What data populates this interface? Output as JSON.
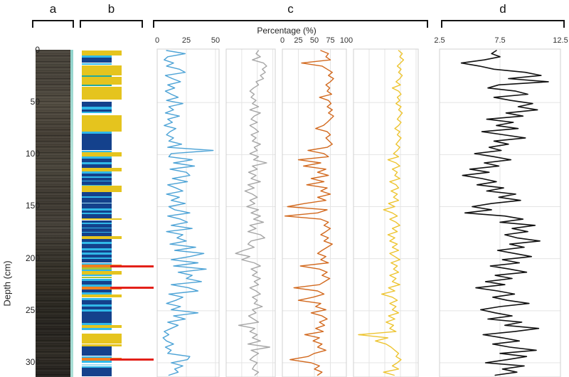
{
  "figure": {
    "panel_labels": {
      "a": "a",
      "b": "b",
      "c": "c",
      "d": "d"
    },
    "percentage_axis_label": "Percentage (%)",
    "depth_axis_label": "Depth (cm)",
    "depth_ticks": [
      0,
      50,
      100,
      150,
      200,
      250,
      300
    ],
    "core_photo": {
      "name": "sediment-core-photograph",
      "edge_strip_color": "#9cd8d0"
    },
    "lithology": {
      "colors": {
        "navy": "#14418c",
        "cyan": "#30b8e8",
        "lightcyan": "#9fdcf2",
        "teal": "#22a99c",
        "lime": "#a9c438",
        "yellow": "#e5c41e",
        "orange": "#f07f1e",
        "red": "#e32119",
        "white": "#ffffff"
      },
      "bands": [
        [
          0,
          5,
          "yellow"
        ],
        [
          5,
          7,
          "cyan"
        ],
        [
          7,
          12,
          "navy"
        ],
        [
          12,
          14,
          "cyan"
        ],
        [
          14,
          24,
          "yellow"
        ],
        [
          24,
          25.5,
          "teal"
        ],
        [
          25.5,
          33,
          "yellow"
        ],
        [
          33,
          34.5,
          "teal"
        ],
        [
          34.5,
          47,
          "yellow"
        ],
        [
          47,
          49,
          "white"
        ],
        [
          49,
          54,
          "navy"
        ],
        [
          54,
          56.5,
          "cyan"
        ],
        [
          56.5,
          58.5,
          "navy"
        ],
        [
          58.5,
          60,
          "cyan"
        ],
        [
          60,
          62,
          "white"
        ],
        [
          62,
          78,
          "yellow"
        ],
        [
          78,
          80,
          "cyan"
        ],
        [
          80,
          96,
          "navy"
        ],
        [
          96,
          97.5,
          "cyan"
        ],
        [
          97.5,
          102,
          "yellow"
        ],
        [
          102,
          104,
          "cyan"
        ],
        [
          104,
          107.5,
          "navy"
        ],
        [
          107.5,
          109.5,
          "cyan"
        ],
        [
          109.5,
          113,
          "navy"
        ],
        [
          113,
          116,
          "yellow"
        ],
        [
          116,
          118,
          "cyan"
        ],
        [
          118,
          121,
          "navy"
        ],
        [
          121,
          122,
          "cyan"
        ],
        [
          122,
          125,
          "navy"
        ],
        [
          125,
          126,
          "cyan"
        ],
        [
          126,
          129,
          "navy"
        ],
        [
          129,
          130,
          "cyan"
        ],
        [
          130,
          136,
          "yellow"
        ],
        [
          136,
          140,
          "navy"
        ],
        [
          140,
          141.5,
          "cyan"
        ],
        [
          141.5,
          146,
          "navy"
        ],
        [
          146,
          147,
          "lightcyan"
        ],
        [
          147,
          152,
          "navy"
        ],
        [
          152,
          154,
          "cyan"
        ],
        [
          154,
          156,
          "navy"
        ],
        [
          156,
          157,
          "cyan"
        ],
        [
          157,
          161,
          "navy"
        ],
        [
          161,
          163,
          "yellow"
        ],
        [
          163,
          165.5,
          "navy"
        ],
        [
          165.5,
          167,
          "cyan"
        ],
        [
          167,
          170,
          "navy"
        ],
        [
          170,
          171,
          "cyan"
        ],
        [
          171,
          174,
          "navy"
        ],
        [
          174,
          175,
          "cyan"
        ],
        [
          175,
          178.5,
          "navy"
        ],
        [
          178.5,
          181,
          "yellow"
        ],
        [
          181,
          184,
          "navy"
        ],
        [
          184,
          186,
          "cyan"
        ],
        [
          186,
          190,
          "navy"
        ],
        [
          190,
          192,
          "cyan"
        ],
        [
          192,
          194,
          "navy"
        ],
        [
          194,
          196,
          "cyan"
        ],
        [
          196,
          199,
          "navy"
        ],
        [
          199,
          200.5,
          "cyan"
        ],
        [
          200.5,
          204,
          "navy"
        ],
        [
          204,
          206,
          "cyan"
        ],
        [
          206,
          208.5,
          "orange"
        ],
        [
          208.5,
          210.5,
          "lime"
        ],
        [
          210.5,
          212,
          "cyan"
        ],
        [
          212,
          215,
          "yellow"
        ],
        [
          215,
          217,
          "cyan"
        ],
        [
          217,
          219,
          "lime"
        ],
        [
          219,
          221.5,
          "cyan"
        ],
        [
          221.5,
          225,
          "navy"
        ],
        [
          225,
          227,
          "cyan"
        ],
        [
          227,
          229.5,
          "orange"
        ],
        [
          229.5,
          232.5,
          "navy"
        ],
        [
          232.5,
          234.5,
          "cyan"
        ],
        [
          234.5,
          237.5,
          "yellow"
        ],
        [
          237.5,
          240,
          "cyan"
        ],
        [
          240,
          244,
          "navy"
        ],
        [
          244,
          246,
          "cyan"
        ],
        [
          246,
          249,
          "navy"
        ],
        [
          249,
          251,
          "cyan"
        ],
        [
          251,
          261.5,
          "navy"
        ],
        [
          261.5,
          263.5,
          "cyan"
        ],
        [
          263.5,
          266.5,
          "yellow"
        ],
        [
          266.5,
          268.5,
          "cyan"
        ],
        [
          268.5,
          272,
          "white"
        ],
        [
          272,
          281.5,
          "yellow"
        ],
        [
          281.5,
          282.5,
          "white"
        ],
        [
          282.5,
          284.5,
          "yellow"
        ],
        [
          284.5,
          293.5,
          "navy"
        ],
        [
          293.5,
          295.5,
          "cyan"
        ],
        [
          295.5,
          298,
          "orange"
        ],
        [
          298,
          300,
          "cyan"
        ],
        [
          300,
          301.5,
          "white"
        ],
        [
          301.5,
          302.5,
          "lightcyan"
        ],
        [
          302.5,
          303.5,
          "white"
        ],
        [
          303.5,
          305,
          "cyan"
        ],
        [
          305,
          313,
          "navy"
        ]
      ],
      "red_marker_depths": [
        207.2,
        228.2,
        296.7
      ]
    }
  },
  "chart_data": [
    {
      "type": "line",
      "name": "percentage-curve-1",
      "color": "#4da3d6",
      "xlim": [
        0,
        53
      ],
      "x_ticks": [
        "0",
        "25",
        "50"
      ],
      "grid_values": [
        0,
        25,
        50
      ],
      "ylabel": "Depth (cm)",
      "ylim": [
        0,
        313
      ],
      "depth_start": 0,
      "depth_step": 3,
      "values": [
        8,
        24,
        9,
        6,
        14,
        8,
        19,
        24,
        7,
        13,
        20,
        9,
        15,
        7,
        12,
        18,
        8,
        22,
        10,
        14,
        7,
        19,
        9,
        13,
        6,
        16,
        11,
        8,
        14,
        10,
        21,
        9,
        48,
        12,
        10,
        30,
        14,
        32,
        11,
        25,
        28,
        13,
        26,
        9,
        16,
        22,
        8,
        19,
        12,
        24,
        10,
        15,
        28,
        9,
        20,
        26,
        12,
        30,
        8,
        22,
        17,
        25,
        11,
        33,
        15,
        40,
        28,
        12,
        35,
        14,
        42,
        18,
        30,
        25,
        38,
        12,
        27,
        35,
        10,
        22,
        16,
        8,
        20,
        12,
        35,
        14,
        24,
        9,
        18,
        12,
        6,
        10,
        5,
        8,
        14,
        7,
        12,
        9,
        28,
        26,
        12,
        22,
        15,
        18,
        10
      ]
    },
    {
      "type": "line",
      "name": "percentage-curve-2",
      "color": "#a6a6a6",
      "xlim": [
        0,
        79
      ],
      "x_ticks": [],
      "grid_values": [
        0,
        25,
        50,
        75
      ],
      "ylabel": "Depth (cm)",
      "ylim": [
        0,
        313
      ],
      "depth_start": 0,
      "depth_step": 3,
      "values": [
        52,
        48,
        55,
        42,
        60,
        65,
        58,
        63,
        55,
        60,
        48,
        52,
        44,
        38,
        45,
        40,
        48,
        42,
        52,
        38,
        55,
        45,
        40,
        50,
        38,
        46,
        52,
        40,
        48,
        42,
        55,
        45,
        50,
        38,
        52,
        44,
        65,
        42,
        50,
        36,
        48,
        40,
        55,
        35,
        45,
        30,
        42,
        50,
        38,
        46,
        33,
        52,
        40,
        55,
        44,
        60,
        38,
        48,
        35,
        55,
        62,
        40,
        35,
        45,
        28,
        15,
        38,
        25,
        45,
        55,
        40,
        50,
        42,
        55,
        45,
        52,
        38,
        48,
        55,
        42,
        50,
        45,
        58,
        42,
        48,
        36,
        44,
        52,
        20,
        46,
        38,
        50,
        42,
        55,
        35,
        70,
        40,
        52,
        44,
        38,
        50,
        45,
        42,
        52,
        46
      ]
    },
    {
      "type": "line",
      "name": "percentage-curve-3",
      "color": "#d2691e",
      "xlim": [
        0,
        100
      ],
      "x_ticks": [
        "0",
        "25",
        "50",
        "75",
        "100"
      ],
      "grid_values": [
        0,
        25,
        50,
        75,
        100
      ],
      "ylabel": "Depth (cm)",
      "ylim": [
        0,
        313
      ],
      "depth_start": 0,
      "depth_step": 3,
      "values": [
        60,
        72,
        68,
        75,
        30,
        62,
        70,
        78,
        72,
        80,
        75,
        68,
        74,
        70,
        77,
        58,
        72,
        76,
        70,
        78,
        72,
        80,
        75,
        70,
        64,
        52,
        70,
        75,
        68,
        73,
        78,
        70,
        40,
        65,
        72,
        25,
        60,
        33,
        68,
        55,
        72,
        45,
        65,
        38,
        70,
        60,
        75,
        55,
        68,
        35,
        8,
        70,
        55,
        4,
        60,
        72,
        65,
        75,
        68,
        60,
        72,
        65,
        78,
        70,
        62,
        55,
        68,
        60,
        72,
        28,
        58,
        70,
        62,
        74,
        66,
        58,
        18,
        55,
        65,
        48,
        25,
        60,
        52,
        68,
        45,
        62,
        70,
        58,
        66,
        52,
        64,
        35,
        58,
        48,
        62,
        55,
        68,
        50,
        40,
        12,
        45,
        58,
        50,
        62,
        55
      ]
    },
    {
      "type": "line",
      "name": "percentage-curve-4",
      "color": "#edc430",
      "xlim": [
        0,
        100
      ],
      "x_ticks": [],
      "grid_values": [
        0,
        25,
        50,
        75,
        100
      ],
      "ylabel": "Depth (cm)",
      "ylim": [
        0,
        313
      ],
      "depth_start": 0,
      "depth_step": 3,
      "values": [
        72,
        78,
        74,
        80,
        75,
        70,
        76,
        72,
        78,
        74,
        68,
        75,
        62,
        72,
        76,
        70,
        74,
        68,
        76,
        72,
        78,
        74,
        70,
        76,
        72,
        66,
        74,
        70,
        76,
        72,
        68,
        74,
        70,
        64,
        72,
        55,
        68,
        74,
        62,
        70,
        66,
        74,
        58,
        68,
        72,
        60,
        70,
        64,
        72,
        56,
        66,
        48,
        62,
        70,
        58,
        68,
        74,
        62,
        70,
        55,
        66,
        58,
        70,
        62,
        72,
        58,
        66,
        74,
        60,
        70,
        64,
        72,
        58,
        68,
        62,
        74,
        56,
        66,
        45,
        62,
        70,
        58,
        68,
        62,
        72,
        56,
        66,
        52,
        64,
        58,
        68,
        8,
        55,
        35,
        52,
        60,
        66,
        72,
        68,
        76,
        70,
        62,
        72,
        48,
        65
      ]
    },
    {
      "type": "line",
      "name": "panel-d-curve",
      "color": "#111111",
      "xlim": [
        2.5,
        12.5
      ],
      "x_ticks": [
        "2.5",
        "7.5",
        "12.5"
      ],
      "grid_values": [
        2.5,
        7.5,
        12.5
      ],
      "ylabel": "Depth (cm)",
      "ylim": [
        0,
        313
      ],
      "depth_start": 0,
      "depth_step": 3,
      "values": [
        7.2,
        6.8,
        7.5,
        6.2,
        4.3,
        5.8,
        7.0,
        9.6,
        10.9,
        8.2,
        11.5,
        7.4,
        6.5,
        8.8,
        9.8,
        7.0,
        8.4,
        10.2,
        9.0,
        10.6,
        8.0,
        9.4,
        6.4,
        8.6,
        7.2,
        9.0,
        6.0,
        7.8,
        9.6,
        7.0,
        8.2,
        6.6,
        7.6,
        5.4,
        7.0,
        8.4,
        6.2,
        7.4,
        5.0,
        6.6,
        4.4,
        6.0,
        7.2,
        5.6,
        7.8,
        6.4,
        8.8,
        7.4,
        9.2,
        6.8,
        5.2,
        6.8,
        4.6,
        7.9,
        9.4,
        7.5,
        10.4,
        8.5,
        9.8,
        7.9,
        8.9,
        10.8,
        8.3,
        9.5,
        7.3,
        8.7,
        10.1,
        7.7,
        9.1,
        6.7,
        8.3,
        9.7,
        7.1,
        8.5,
        6.3,
        7.9,
        5.5,
        7.3,
        8.7,
        6.9,
        8.1,
        9.9,
        7.5,
        5.9,
        7.1,
        8.5,
        6.5,
        9.3,
        7.9,
        10.7,
        8.7,
        6.1,
        7.7,
        9.1,
        6.9,
        8.3,
        10.5,
        7.5,
        9.7,
        8.1,
        6.3,
        9.5,
        7.7,
        8.9,
        7.1
      ]
    }
  ]
}
